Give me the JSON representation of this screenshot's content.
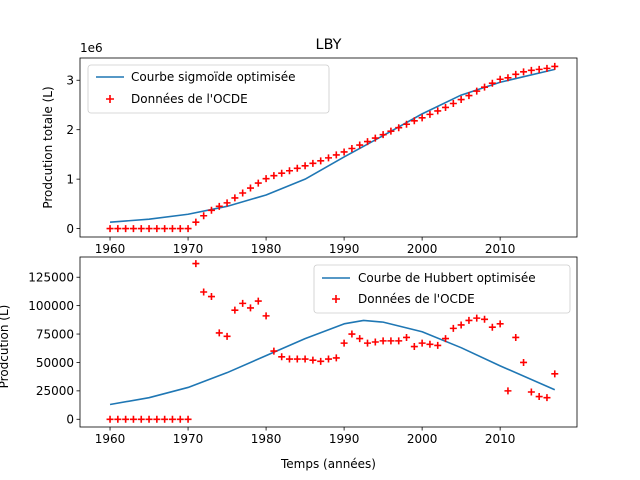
{
  "chart_data": [
    {
      "type": "line",
      "title": "LBY",
      "ylabel": "Prodcution totale (L)",
      "xlabel": "",
      "xlim": [
        1956.15,
        2019.85
      ],
      "ylim": [
        -170000,
        3450000
      ],
      "offset_label": "1e6",
      "xticks": [
        1960,
        1970,
        1980,
        1990,
        2000,
        2010
      ],
      "yticks": [
        0,
        1000000,
        2000000,
        3000000
      ],
      "ytick_labels": [
        "0",
        "1",
        "2",
        "3"
      ],
      "legend": {
        "placement": "upper-left",
        "entries": [
          "Courbe sigmoïde optimisée",
          "Données de l'OCDE"
        ]
      },
      "series": [
        {
          "name": "Courbe sigmoïde optimisée",
          "kind": "line",
          "color": "#1f77b4",
          "x": [
            1960,
            1965,
            1970,
            1975,
            1980,
            1985,
            1990,
            1995,
            2000,
            2005,
            2010,
            2017
          ],
          "y": [
            130000,
            190000,
            290000,
            450000,
            680000,
            1000000,
            1450000,
            1880000,
            2320000,
            2700000,
            2960000,
            3220000
          ]
        },
        {
          "name": "Données de l'OCDE",
          "kind": "scatter",
          "marker": "+",
          "color": "#ff0000",
          "x": [
            1960,
            1961,
            1962,
            1963,
            1964,
            1965,
            1966,
            1967,
            1968,
            1969,
            1970,
            1971,
            1972,
            1973,
            1974,
            1975,
            1976,
            1977,
            1978,
            1979,
            1980,
            1981,
            1982,
            1983,
            1984,
            1985,
            1986,
            1987,
            1988,
            1989,
            1990,
            1991,
            1992,
            1993,
            1994,
            1995,
            1996,
            1997,
            1998,
            1999,
            2000,
            2001,
            2002,
            2003,
            2004,
            2005,
            2006,
            2007,
            2008,
            2009,
            2010,
            2011,
            2012,
            2013,
            2014,
            2015,
            2016,
            2017
          ],
          "y": [
            0,
            0,
            0,
            0,
            0,
            0,
            0,
            0,
            0,
            0,
            0,
            130000,
            260000,
            370000,
            450000,
            520000,
            620000,
            720000,
            820000,
            920000,
            1010000,
            1070000,
            1120000,
            1170000,
            1220000,
            1270000,
            1320000,
            1370000,
            1430000,
            1490000,
            1550000,
            1620000,
            1690000,
            1760000,
            1830000,
            1900000,
            1970000,
            2040000,
            2110000,
            2180000,
            2240000,
            2310000,
            2380000,
            2450000,
            2530000,
            2610000,
            2690000,
            2780000,
            2860000,
            2940000,
            3020000,
            3050000,
            3120000,
            3170000,
            3200000,
            3220000,
            3240000,
            3280000
          ]
        }
      ]
    },
    {
      "type": "line",
      "title": "",
      "ylabel": "Prodcution (L)",
      "xlabel": "Temps (années)",
      "xlim": [
        1956.15,
        2019.85
      ],
      "ylim": [
        -6800,
        142800
      ],
      "xticks": [
        1960,
        1970,
        1980,
        1990,
        2000,
        2010
      ],
      "yticks": [
        0,
        25000,
        50000,
        75000,
        100000,
        125000
      ],
      "ytick_labels": [
        "0",
        "25000",
        "50000",
        "75000",
        "100000",
        "125000"
      ],
      "legend": {
        "placement": "upper-right",
        "entries": [
          "Courbe de Hubbert optimisée",
          "Données de l'OCDE"
        ]
      },
      "series": [
        {
          "name": "Courbe de Hubbert optimisée",
          "kind": "line",
          "color": "#1f77b4",
          "x": [
            1960,
            1965,
            1970,
            1975,
            1980,
            1985,
            1990,
            1992.5,
            1995,
            2000,
            2005,
            2010,
            2017
          ],
          "y": [
            13000,
            19000,
            28000,
            41000,
            56000,
            71000,
            84000,
            87000,
            85500,
            77000,
            63000,
            47000,
            26000
          ]
        },
        {
          "name": "Données de l'OCDE",
          "kind": "scatter",
          "marker": "+",
          "color": "#ff0000",
          "x": [
            1960,
            1961,
            1962,
            1963,
            1964,
            1965,
            1966,
            1967,
            1968,
            1969,
            1970,
            1971,
            1972,
            1973,
            1974,
            1975,
            1976,
            1977,
            1978,
            1979,
            1980,
            1981,
            1982,
            1983,
            1984,
            1985,
            1986,
            1987,
            1988,
            1989,
            1990,
            1991,
            1992,
            1993,
            1994,
            1995,
            1996,
            1997,
            1998,
            1999,
            2000,
            2001,
            2002,
            2003,
            2004,
            2005,
            2006,
            2007,
            2008,
            2009,
            2010,
            2011,
            2012,
            2013,
            2014,
            2015,
            2016,
            2017
          ],
          "y": [
            0,
            0,
            0,
            0,
            0,
            0,
            0,
            0,
            0,
            0,
            0,
            137000,
            112000,
            108000,
            76000,
            73000,
            96000,
            102000,
            98000,
            104000,
            91000,
            60000,
            55000,
            53000,
            53000,
            53000,
            52000,
            51000,
            53000,
            54000,
            67000,
            75000,
            71000,
            67000,
            68000,
            69000,
            69000,
            69000,
            72000,
            64000,
            67000,
            66000,
            65000,
            71000,
            80000,
            83000,
            87000,
            89000,
            88000,
            81000,
            84000,
            25000,
            72000,
            50000,
            24000,
            20000,
            19000,
            40000
          ]
        }
      ]
    }
  ]
}
